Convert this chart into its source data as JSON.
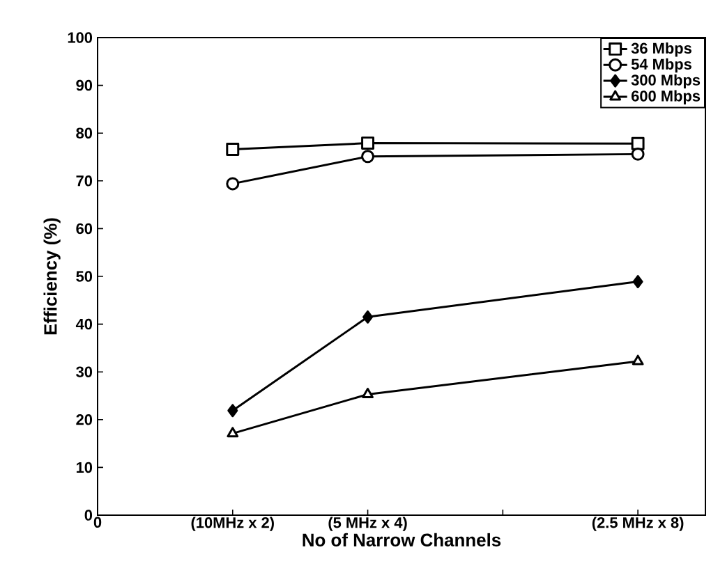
{
  "chart_data": {
    "type": "line",
    "xlabel": "No of Narrow Channels",
    "ylabel": "Efficiency (%)",
    "categories": [
      "0",
      "(10MHz x 2)",
      "(5 MHz x 4)",
      null,
      "(2.5 MHz x 8)"
    ],
    "ylim": [
      0,
      100
    ],
    "yticks": [
      0,
      10,
      20,
      30,
      40,
      50,
      60,
      70,
      80,
      90,
      100
    ],
    "grid": false,
    "legend": "top right",
    "line_style": "solid",
    "series": [
      {
        "name": "36 Mbps",
        "color": "#000000",
        "marker": "square",
        "values": [
          null,
          76.6,
          77.9,
          null,
          77.8
        ]
      },
      {
        "name": "54 Mbps",
        "color": "#000000",
        "marker": "circle",
        "values": [
          null,
          69.4,
          75.1,
          null,
          75.6
        ]
      },
      {
        "name": "300 Mbps",
        "color": "#000000",
        "marker": "diamond",
        "values": [
          null,
          21.9,
          41.5,
          null,
          48.9
        ]
      },
      {
        "name": "600 Mbps",
        "color": "#000000",
        "marker": "triangle",
        "values": [
          null,
          17.1,
          25.3,
          null,
          32.2
        ]
      }
    ]
  }
}
